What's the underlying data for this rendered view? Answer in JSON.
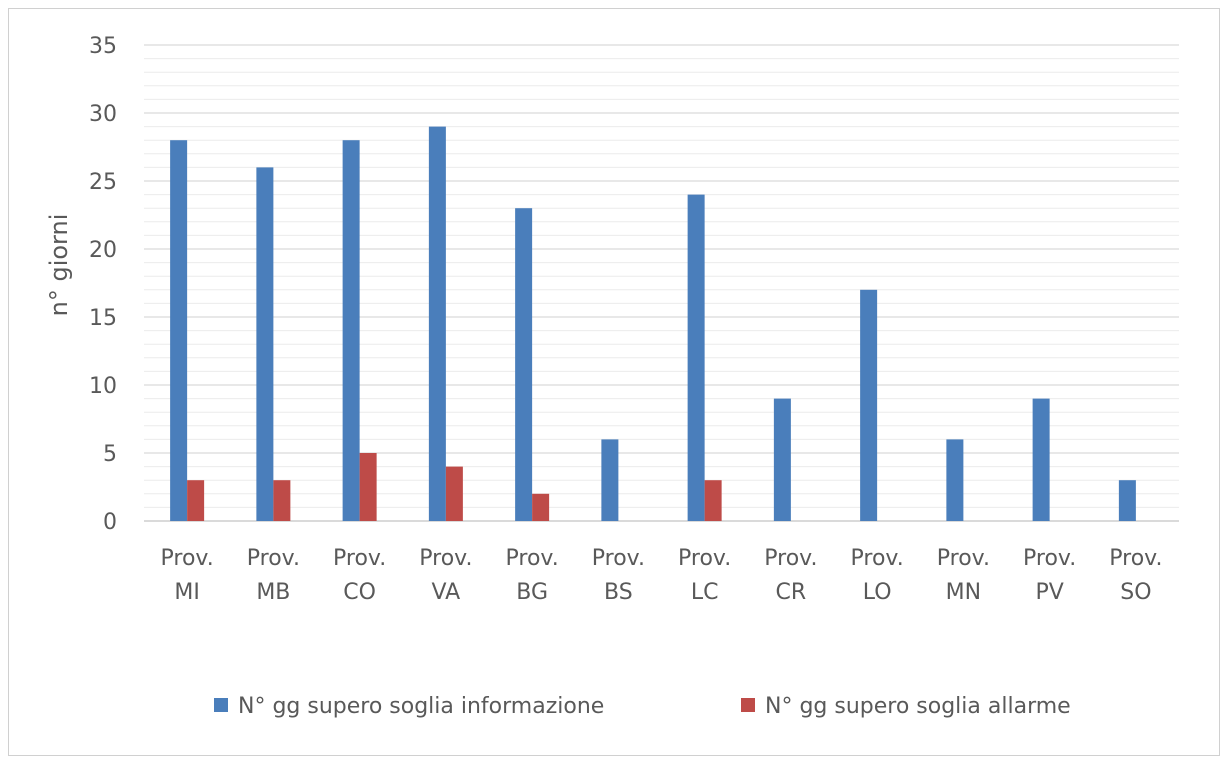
{
  "chart_data": {
    "type": "bar",
    "title": "",
    "xlabel": "",
    "ylabel": "n° giorni",
    "ylim": [
      0,
      35
    ],
    "y_major_ticks": [
      0,
      5,
      10,
      15,
      20,
      25,
      30,
      35
    ],
    "y_minor_step": 1,
    "grid": true,
    "legend_position": "bottom",
    "categories": [
      [
        "Prov.",
        "MI"
      ],
      [
        "Prov.",
        "MB"
      ],
      [
        "Prov.",
        "CO"
      ],
      [
        "Prov.",
        "VA"
      ],
      [
        "Prov.",
        "BG"
      ],
      [
        "Prov.",
        "BS"
      ],
      [
        "Prov.",
        "LC"
      ],
      [
        "Prov.",
        "CR"
      ],
      [
        "Prov.",
        "LO"
      ],
      [
        "Prov.",
        "MN"
      ],
      [
        "Prov.",
        "PV"
      ],
      [
        "Prov.",
        "SO"
      ]
    ],
    "series": [
      {
        "name": "N° gg supero soglia informazione",
        "color": "#4a7ebb",
        "values": [
          28,
          26,
          28,
          29,
          23,
          6,
          24,
          9,
          17,
          6,
          9,
          3
        ]
      },
      {
        "name": "N° gg supero soglia allarme",
        "color": "#be4b48",
        "values": [
          3,
          3,
          5,
          4,
          2,
          0,
          3,
          0,
          0,
          0,
          0,
          0
        ]
      }
    ]
  }
}
